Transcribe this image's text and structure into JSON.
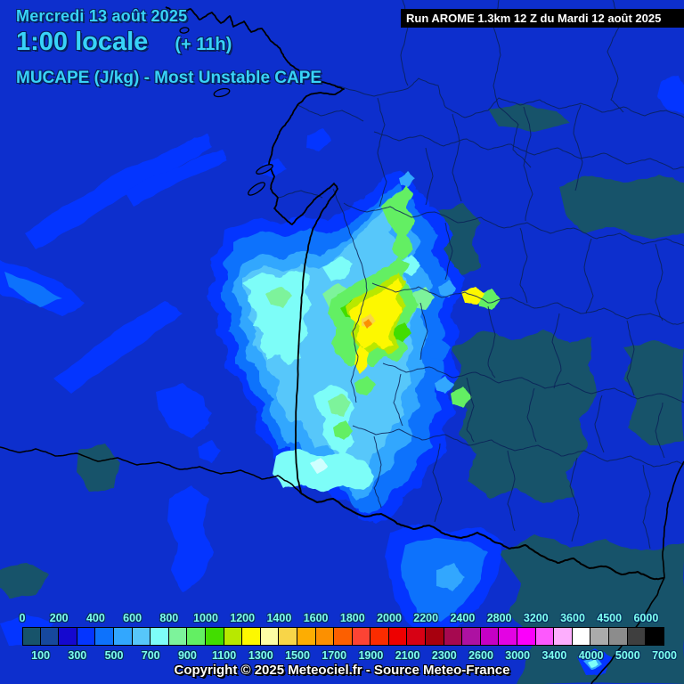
{
  "header": {
    "date_line": "Mercredi 13 août 2025",
    "time_line": "1:00 locale",
    "offset": "(+ 11h)",
    "param_title": "MUCAPE (J/kg) - Most Unstable CAPE"
  },
  "run_box": {
    "text": "Run AROME 1.3km 12 Z du Mardi 12 août 2025"
  },
  "footer": {
    "copyright": "Copyright © 2025 Meteociel.fr - Source Meteo-France"
  },
  "legend": {
    "unit": "J/kg",
    "boundaries": [
      0,
      100,
      200,
      300,
      400,
      500,
      600,
      700,
      800,
      900,
      1000,
      1100,
      1200,
      1300,
      1400,
      1500,
      1600,
      1700,
      1800,
      1900,
      2000,
      2100,
      2200,
      2300,
      2400,
      2600,
      2800,
      3000,
      3200,
      3400,
      3600,
      4000,
      4500,
      5000,
      6000,
      7000
    ],
    "top_labels": [
      "0",
      "200",
      "400",
      "600",
      "800",
      "1000",
      "1200",
      "1400",
      "1600",
      "1800",
      "2000",
      "2200",
      "2400",
      "2800",
      "3200",
      "3600",
      "4500",
      "6000"
    ],
    "bottom_labels": [
      "100",
      "300",
      "500",
      "700",
      "900",
      "1100",
      "1300",
      "1500",
      "1700",
      "1900",
      "2100",
      "2300",
      "2600",
      "3000",
      "3400",
      "4000",
      "5000",
      "7000"
    ],
    "colors": [
      "#17536a",
      "#16489d",
      "#1508cf",
      "#0435ff",
      "#0d72fc",
      "#32a7fe",
      "#57c7fa",
      "#7dfdf8",
      "#7df39b",
      "#63ef63",
      "#42dd00",
      "#b8e800",
      "#fdf800",
      "#fdfda4",
      "#f8d548",
      "#fdad02",
      "#fc9000",
      "#fc5f00",
      "#fd4334",
      "#fb2c00",
      "#ee0000",
      "#d70114",
      "#a7000e",
      "#a60950",
      "#ad11a2",
      "#c500c5",
      "#e303e3",
      "#fb00fb",
      "#fd59fd",
      "#fdaefd",
      "#ffffff",
      "#ababab",
      "#8c8c8c",
      "#3f3f3f",
      "#000000"
    ]
  },
  "colors": {
    "map_background": "#0d2fcd",
    "header_text": "#38d3f8",
    "legend_label_text": "#7dfff0",
    "run_box_bg": "#000000",
    "run_box_text": "#ffffff",
    "copyright_text": "#ffffff",
    "coastline": "#000000"
  }
}
